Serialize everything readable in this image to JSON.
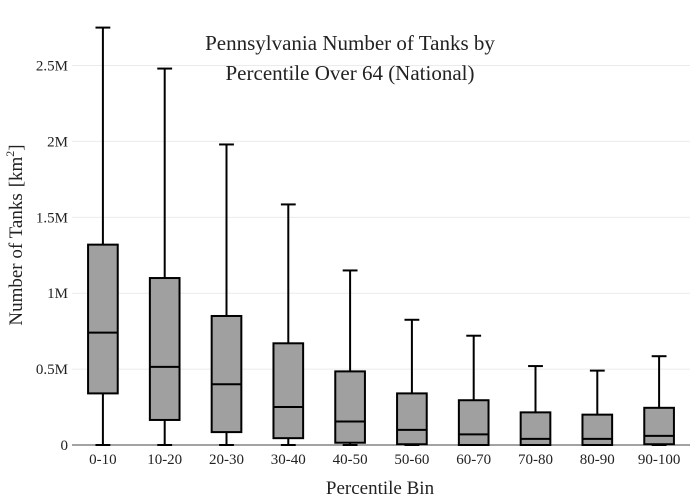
{
  "chart_data": {
    "type": "box",
    "title_lines": [
      "Pennsylvania Number of Tanks by",
      "Percentile Over 64 (National)"
    ],
    "xlabel": "Percentile Bin",
    "ylabel": "Number of Tanks",
    "ylabel_unit": "[km",
    "ylabel_unit_sup": "2",
    "ylabel_unit_end": "]",
    "ylim": [
      0,
      2800000
    ],
    "yticks": [
      {
        "value": 0,
        "label": "0"
      },
      {
        "value": 500000,
        "label": "0.5M"
      },
      {
        "value": 1000000,
        "label": "1M"
      },
      {
        "value": 1500000,
        "label": "1.5M"
      },
      {
        "value": 2000000,
        "label": "2M"
      },
      {
        "value": 2500000,
        "label": "2.5M"
      }
    ],
    "grid": true,
    "box_color": "#a0a0a0",
    "line_color": "#000000",
    "categories": [
      "0-10",
      "10-20",
      "20-30",
      "30-40",
      "40-50",
      "50-60",
      "60-70",
      "70-80",
      "80-90",
      "90-100"
    ],
    "boxes": [
      {
        "min": 0,
        "q1": 340000,
        "median": 740000,
        "q3": 1320000,
        "max": 2750000
      },
      {
        "min": 0,
        "q1": 165000,
        "median": 515000,
        "q3": 1100000,
        "max": 2480000
      },
      {
        "min": 0,
        "q1": 85000,
        "median": 400000,
        "q3": 850000,
        "max": 1980000
      },
      {
        "min": 0,
        "q1": 45000,
        "median": 250000,
        "q3": 670000,
        "max": 1585000
      },
      {
        "min": 0,
        "q1": 15000,
        "median": 155000,
        "q3": 485000,
        "max": 1150000
      },
      {
        "min": 0,
        "q1": 5000,
        "median": 100000,
        "q3": 340000,
        "max": 825000
      },
      {
        "min": 0,
        "q1": 0,
        "median": 70000,
        "q3": 295000,
        "max": 720000
      },
      {
        "min": 0,
        "q1": 0,
        "median": 40000,
        "q3": 215000,
        "max": 520000
      },
      {
        "min": 0,
        "q1": 0,
        "median": 40000,
        "q3": 200000,
        "max": 490000
      },
      {
        "min": 0,
        "q1": 5000,
        "median": 60000,
        "q3": 245000,
        "max": 585000
      }
    ]
  }
}
